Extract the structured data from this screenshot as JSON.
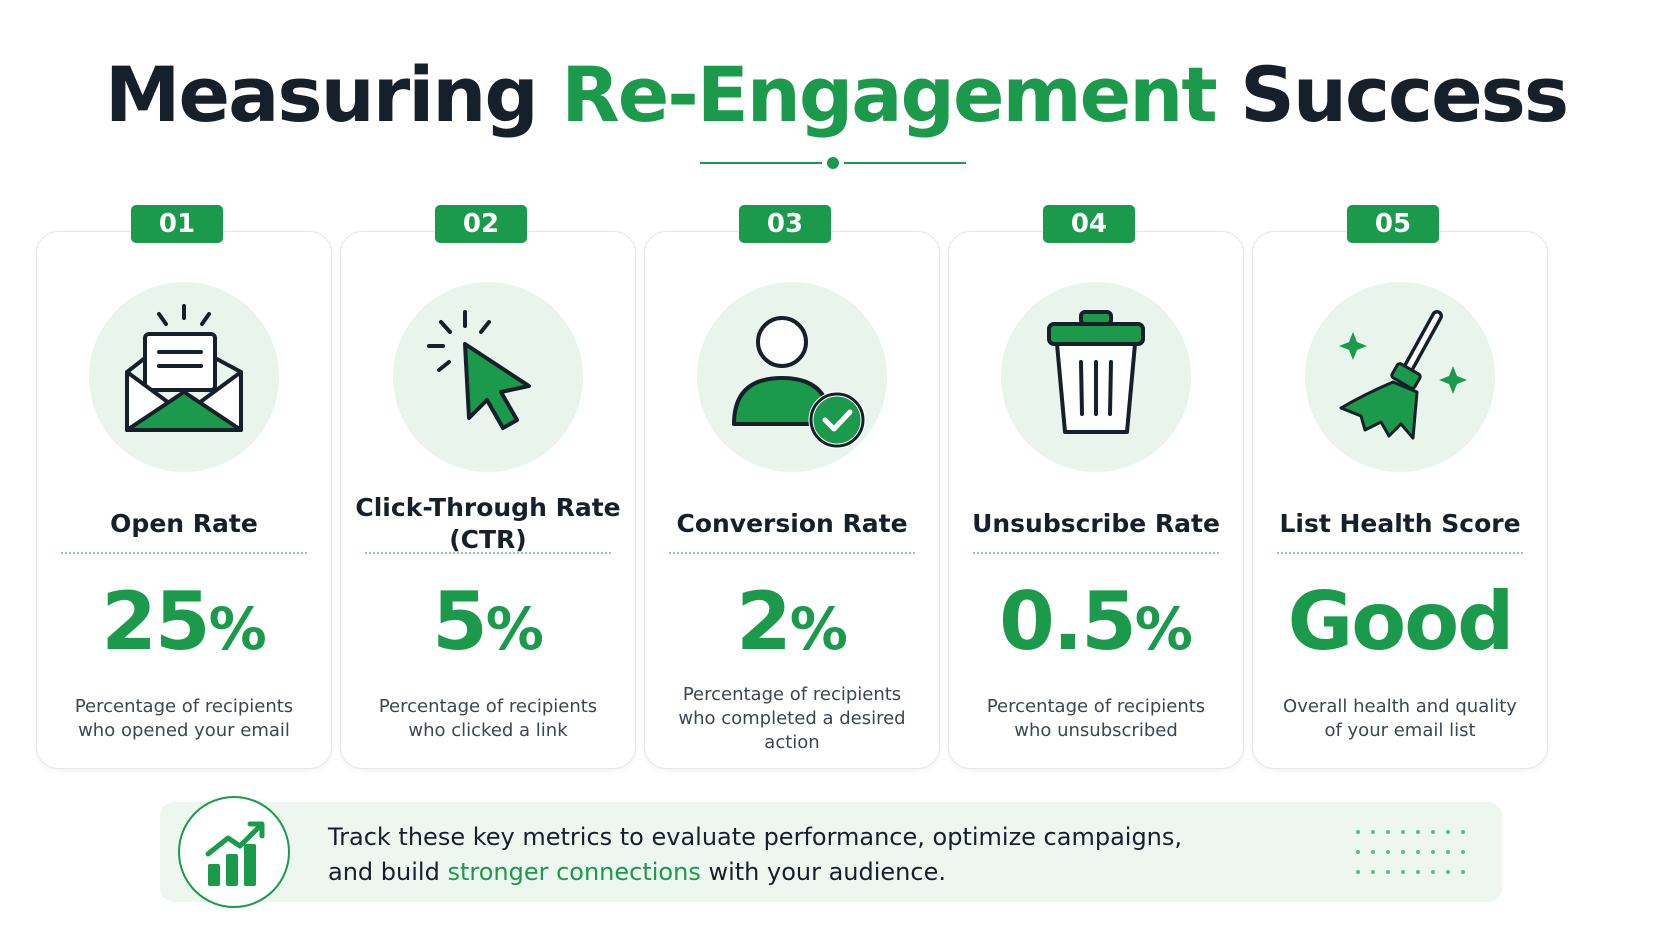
{
  "title": {
    "part1": "Measuring",
    "accent": "Re-Engagement",
    "part2": "Success"
  },
  "colors": {
    "accent": "#1a9a4a",
    "dark": "#16202a",
    "icon_bg": "#e9f5ec",
    "footer_bg": "#eef6f0"
  },
  "metrics": [
    {
      "number": "01",
      "icon": "envelope-icon",
      "title": "Open Rate",
      "value": "25",
      "unit": "%",
      "description": "Percentage of recipients who opened your email"
    },
    {
      "number": "02",
      "icon": "cursor-click-icon",
      "title": "Click-Through Rate (CTR)",
      "value": "5",
      "unit": "%",
      "description": "Percentage of recipients who clicked a link"
    },
    {
      "number": "03",
      "icon": "user-check-icon",
      "title": "Conversion Rate",
      "value": "2",
      "unit": "%",
      "description": "Percentage of recipients who completed a desired action"
    },
    {
      "number": "04",
      "icon": "trash-icon",
      "title": "Unsubscribe Rate",
      "value": "0.5",
      "unit": "%",
      "description": "Percentage of recipients who unsubscribed"
    },
    {
      "number": "05",
      "icon": "broom-icon",
      "title": "List Health Score",
      "value": "Good",
      "unit": "",
      "description": "Overall health and quality of your email list"
    }
  ],
  "footer": {
    "icon": "growth-chart-icon",
    "line1": "Track these key metrics to evaluate performance, optimize campaigns,",
    "line2_pre": "and build ",
    "line2_accent": "stronger connections",
    "line2_post": " with your audience."
  }
}
